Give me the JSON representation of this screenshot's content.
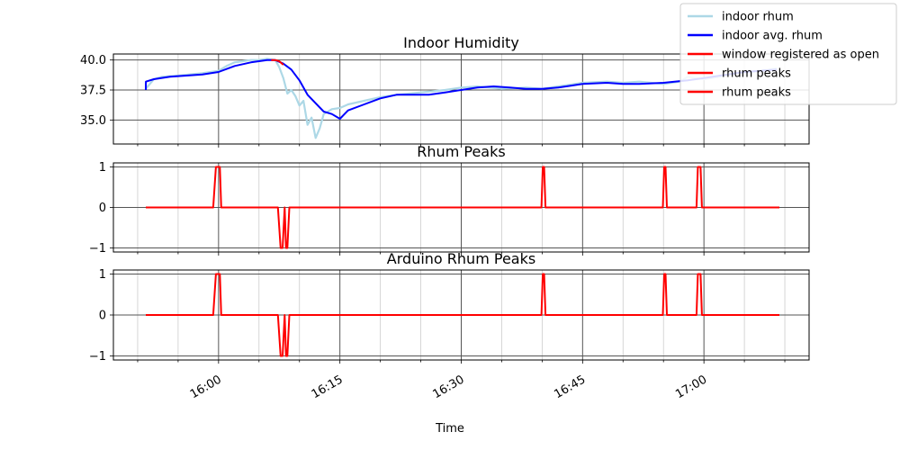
{
  "figure": {
    "xlabel": "Time"
  },
  "chart_data": [
    {
      "type": "line",
      "title": "Indoor Humidity",
      "x_range": [
        "15:47:00",
        "17:13:00"
      ],
      "ylim": [
        33.0,
        40.5
      ],
      "yticks": [
        35.0,
        37.5,
        40.0
      ],
      "ytick_labels": [
        "35.0",
        "37.5",
        "40.0"
      ],
      "grid": true,
      "legend_position": "top-right",
      "series": [
        {
          "name": "indoor rhum",
          "color": "#add8e6",
          "x": [
            "15:51",
            "15:52",
            "15:53",
            "15:55",
            "15:58",
            "16:00",
            "16:01",
            "16:02",
            "16:03",
            "16:04",
            "16:05",
            "16:06",
            "16:07",
            "16:07:30",
            "16:08",
            "16:08:30",
            "16:09",
            "16:09:30",
            "16:10",
            "16:10:30",
            "16:11",
            "16:11:30",
            "16:12",
            "16:12:30",
            "16:13",
            "16:14",
            "16:15",
            "16:16",
            "16:18",
            "16:20",
            "16:22",
            "16:25",
            "16:28",
            "16:30",
            "16:32",
            "16:35",
            "16:38",
            "16:40",
            "16:42",
            "16:45",
            "16:48",
            "16:50",
            "16:52",
            "16:55",
            "16:57",
            "16:58",
            "17:00",
            "17:02",
            "17:04",
            "17:06",
            "17:09"
          ],
          "values": [
            37.6,
            38.4,
            38.6,
            38.7,
            38.9,
            39.1,
            39.5,
            39.8,
            39.9,
            40.0,
            40.0,
            40.1,
            40.0,
            39.4,
            38.5,
            37.2,
            37.5,
            37.0,
            36.2,
            36.6,
            34.6,
            35.2,
            33.5,
            34.3,
            35.5,
            35.9,
            36.0,
            36.3,
            36.6,
            36.9,
            37.1,
            37.3,
            37.5,
            37.7,
            37.8,
            37.6,
            37.7,
            37.6,
            37.8,
            38.1,
            38.2,
            38.1,
            38.2,
            38.0,
            38.2,
            38.6,
            38.4,
            38.6,
            38.9,
            39.0,
            39.3
          ]
        },
        {
          "name": "indoor avg. rhum",
          "color": "#0000ff",
          "x": [
            "15:51",
            "15:51:01",
            "15:52",
            "15:54",
            "15:56",
            "15:58",
            "16:00",
            "16:02",
            "16:04",
            "16:06",
            "16:07",
            "16:08",
            "16:09",
            "16:10",
            "16:11",
            "16:12",
            "16:13",
            "16:14",
            "16:15",
            "16:16",
            "16:18",
            "16:20",
            "16:22",
            "16:24",
            "16:26",
            "16:28",
            "16:30",
            "16:32",
            "16:34",
            "16:36",
            "16:38",
            "16:40",
            "16:42",
            "16:45",
            "16:48",
            "16:50",
            "16:52",
            "16:55",
            "16:58",
            "17:00",
            "17:02",
            "17:05",
            "17:09"
          ],
          "values": [
            37.5,
            38.2,
            38.4,
            38.6,
            38.7,
            38.8,
            39.0,
            39.5,
            39.8,
            40.0,
            40.0,
            39.7,
            39.2,
            38.3,
            37.1,
            36.4,
            35.7,
            35.5,
            35.1,
            35.8,
            36.3,
            36.8,
            37.1,
            37.1,
            37.1,
            37.3,
            37.5,
            37.7,
            37.8,
            37.7,
            37.6,
            37.6,
            37.7,
            38.0,
            38.1,
            38.0,
            38.0,
            38.1,
            38.3,
            38.5,
            38.7,
            39.0,
            39.2
          ]
        },
        {
          "name": "window registered as open",
          "color": "#ff0000",
          "x": [
            "16:06:30",
            "16:07",
            "16:07:30",
            "16:08"
          ],
          "values": [
            40.0,
            40.0,
            39.9,
            39.6
          ]
        }
      ],
      "legend": [
        {
          "label": "indoor rhum",
          "color": "#add8e6"
        },
        {
          "label": "indoor avg. rhum",
          "color": "#0000ff"
        },
        {
          "label": "window registered as open",
          "color": "#ff0000"
        },
        {
          "label": "rhum peaks",
          "color": "#ff0000"
        },
        {
          "label": "rhum peaks",
          "color": "#ff0000"
        }
      ]
    },
    {
      "type": "line",
      "title": "Rhum Peaks",
      "x_range": [
        "15:47:00",
        "17:13:00"
      ],
      "ylim": [
        -1.1,
        1.1
      ],
      "yticks": [
        -1,
        0,
        1
      ],
      "ytick_labels": [
        "−1",
        "0",
        "1"
      ],
      "grid": true,
      "series": [
        {
          "name": "rhum peaks",
          "color": "#ff0000",
          "x": [
            "15:51",
            "15:59:20",
            "15:59:40",
            "16:00:10",
            "16:00:20",
            "16:07:20",
            "16:07:40",
            "16:07:55",
            "16:08:10",
            "16:08:20",
            "16:08:30",
            "16:08:45",
            "16:08:55",
            "16:39:55",
            "16:40:05",
            "16:40:15",
            "16:40:25",
            "16:54:55",
            "16:55:05",
            "16:55:15",
            "16:55:25",
            "16:59:05",
            "16:59:15",
            "16:59:35",
            "16:59:45",
            "17:09:20"
          ],
          "values": [
            0,
            0,
            1,
            1,
            0,
            0,
            -1,
            -1,
            0,
            -1,
            -1,
            0,
            0,
            0,
            1,
            1,
            0,
            0,
            1,
            1,
            0,
            0,
            1,
            1,
            0,
            0
          ]
        }
      ]
    },
    {
      "type": "line",
      "title": "Arduino Rhum Peaks",
      "x_range": [
        "15:47:00",
        "17:13:00"
      ],
      "ylim": [
        -1.1,
        1.1
      ],
      "yticks": [
        -1,
        0,
        1
      ],
      "ytick_labels": [
        "−1",
        "0",
        "1"
      ],
      "xticks": [
        "16:00",
        "16:15",
        "16:30",
        "16:45",
        "17:00"
      ],
      "xtick_labels": [
        "16:00",
        "16:15",
        "16:30",
        "16:45",
        "17:00"
      ],
      "grid": true,
      "series": [
        {
          "name": "rhum peaks",
          "color": "#ff0000",
          "x": [
            "15:51",
            "15:59:20",
            "15:59:40",
            "16:00:10",
            "16:00:20",
            "16:07:20",
            "16:07:40",
            "16:07:55",
            "16:08:10",
            "16:08:20",
            "16:08:30",
            "16:08:45",
            "16:08:55",
            "16:39:55",
            "16:40:05",
            "16:40:15",
            "16:40:25",
            "16:54:55",
            "16:55:05",
            "16:55:15",
            "16:55:25",
            "16:59:05",
            "16:59:15",
            "16:59:35",
            "16:59:45",
            "17:09:20"
          ],
          "values": [
            0,
            0,
            1,
            1,
            0,
            0,
            -1,
            -1,
            0,
            -1,
            -1,
            0,
            0,
            0,
            1,
            1,
            0,
            0,
            1,
            1,
            0,
            0,
            1,
            1,
            0,
            0
          ]
        }
      ]
    }
  ]
}
